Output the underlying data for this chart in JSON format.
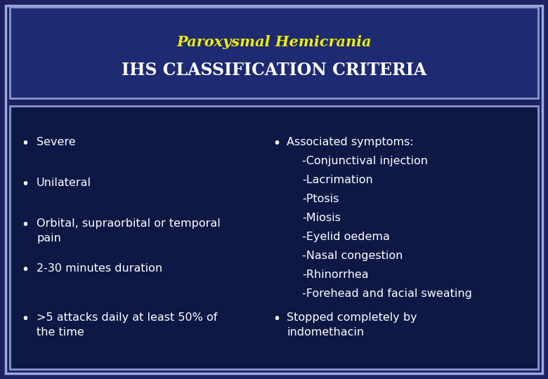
{
  "title_line1": "Paroxysmal Hemicrania",
  "title_line2": "IHS CLASSIFICATION CRITERIA",
  "title_color1": "#EFEF00",
  "title_color2": "#FFFFFF",
  "bg_outer": "#1e2060",
  "bg_header": "#1e2a72",
  "bg_body": "#0e1845",
  "border_color_outer": "#9aabdd",
  "border_color_inner": "#8899cc",
  "text_color": "#FFFFFF",
  "left_bullets": [
    "Severe",
    "Unilateral",
    "Orbital, supraorbital or temporal\npain",
    "2-30 minutes duration",
    ">5 attacks daily at least 50% of\nthe time"
  ],
  "right_col1_header": "Associated symptoms:",
  "right_col1_items": [
    "-Conjunctival injection",
    "-Lacrimation",
    "-Ptosis",
    "-Miosis",
    "-Eyelid oedema",
    "-Nasal congestion",
    "-Rhinorrhea",
    "-Forehead and facial sweating"
  ],
  "right_col2": "Stopped completely by\nindomethacin",
  "font_size_title1": 15,
  "font_size_title2": 17,
  "font_size_body": 11.5
}
